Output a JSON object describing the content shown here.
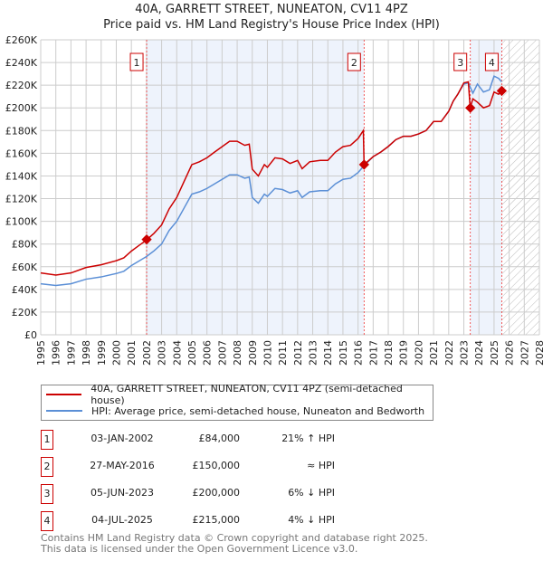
{
  "chart_data": {
    "type": "line",
    "title": "40A, GARRETT STREET, NUNEATON, CV11 4PZ",
    "subtitle": "Price paid vs. HM Land Registry's House Price Index (HPI)",
    "xlim": [
      1995,
      2028
    ],
    "ylim": [
      0,
      260000
    ],
    "x_ticks": [
      "1995",
      "1996",
      "1997",
      "1998",
      "1999",
      "2000",
      "2001",
      "2002",
      "2003",
      "2004",
      "2005",
      "2006",
      "2007",
      "2008",
      "2009",
      "2010",
      "2011",
      "2012",
      "2013",
      "2014",
      "2015",
      "2016",
      "2017",
      "2018",
      "2019",
      "2020",
      "2021",
      "2022",
      "2023",
      "2024",
      "2025",
      "2026",
      "2027",
      "2028"
    ],
    "y_ticks": [
      "£0",
      "£20K",
      "£40K",
      "£60K",
      "£80K",
      "£100K",
      "£120K",
      "£140K",
      "£160K",
      "£180K",
      "£200K",
      "£220K",
      "£240K",
      "£260K"
    ],
    "grid": true,
    "series": [
      {
        "name": "40A, GARRETT STREET, NUNEATON, CV11 4PZ (semi-detached house)",
        "color": "#cc0000",
        "x": [
          1995,
          1996,
          1997,
          1998,
          1999,
          2000,
          2000.5,
          2001,
          2001.5,
          2002,
          2002.5,
          2003,
          2003.5,
          2004,
          2004.5,
          2005,
          2005.5,
          2006,
          2006.5,
          2007,
          2007.5,
          2008,
          2008.5,
          2008.8,
          2009,
          2009.4,
          2009.8,
          2010,
          2010.5,
          2011,
          2011.5,
          2012,
          2012.3,
          2012.8,
          2013.5,
          2014,
          2014.5,
          2015,
          2015.5,
          2016,
          2016.35,
          2016.4,
          2017,
          2017.5,
          2018,
          2018.5,
          2019,
          2019.5,
          2020,
          2020.5,
          2021,
          2021.5,
          2022,
          2022.3,
          2022.6,
          2023,
          2023.3,
          2023.42,
          2023.6,
          2023.9,
          2024.3,
          2024.7,
          2025,
          2025.3,
          2025.5
        ],
        "y": [
          54500,
          52600,
          54500,
          59300,
          61700,
          65300,
          67800,
          73800,
          78700,
          83500,
          89500,
          96800,
          111000,
          121000,
          135500,
          150000,
          152500,
          156000,
          161000,
          165800,
          170600,
          170600,
          167000,
          168000,
          146000,
          140000,
          150000,
          147600,
          156000,
          155000,
          151000,
          153700,
          146400,
          152500,
          153700,
          153700,
          161000,
          165800,
          167000,
          173000,
          180000,
          150000,
          157000,
          161000,
          166000,
          172000,
          175000,
          175000,
          177000,
          180000,
          188000,
          188000,
          197000,
          206000,
          212000,
          222000,
          223000,
          200000,
          208000,
          205000,
          200000,
          202000,
          214000,
          212000,
          215000
        ]
      },
      {
        "name": "HPI: Average price, semi-detached house, Nuneaton and Bedworth",
        "color": "#5b8fd6",
        "x": [
          1995,
          1996,
          1997,
          1998,
          1999,
          2000,
          2000.5,
          2001,
          2001.5,
          2002,
          2002.5,
          2003,
          2003.5,
          2004,
          2004.5,
          2005,
          2005.5,
          2006,
          2006.5,
          2007,
          2007.5,
          2008,
          2008.5,
          2008.8,
          2009,
          2009.4,
          2009.8,
          2010,
          2010.5,
          2011,
          2011.5,
          2012,
          2012.3,
          2012.8,
          2013.5,
          2014,
          2014.5,
          2015,
          2015.5,
          2016,
          2016.4,
          2017,
          2017.5,
          2018,
          2018.5,
          2019,
          2019.5,
          2020,
          2020.5,
          2021,
          2021.5,
          2022,
          2022.3,
          2022.6,
          2023,
          2023.3,
          2023.6,
          2023.9,
          2024.3,
          2024.7,
          2025,
          2025.3,
          2025.5
        ],
        "y": [
          45000,
          43500,
          45000,
          49000,
          51000,
          54000,
          56000,
          61000,
          65000,
          69000,
          74000,
          80000,
          92000,
          100000,
          112000,
          124000,
          126000,
          129000,
          133000,
          137000,
          141000,
          141000,
          138000,
          139000,
          121000,
          116000,
          124000,
          122000,
          129000,
          128000,
          125000,
          127000,
          121000,
          126000,
          127000,
          127000,
          133000,
          137000,
          138000,
          143000,
          149000,
          157000,
          161000,
          166000,
          172000,
          175000,
          175000,
          177000,
          180000,
          188000,
          188000,
          197000,
          206000,
          212000,
          221000,
          222000,
          213000,
          221000,
          214000,
          216000,
          228000,
          226000,
          223000
        ]
      }
    ],
    "sales": [
      {
        "label": "1",
        "x": 2002.01,
        "y": 84000,
        "date": "03-JAN-2002",
        "price": "£84,000",
        "vs_hpi": "21% ↑ HPI"
      },
      {
        "label": "2",
        "x": 2016.4,
        "y": 150000,
        "date": "27-MAY-2016",
        "price": "£150,000",
        "vs_hpi": "≈ HPI"
      },
      {
        "label": "3",
        "x": 2023.43,
        "y": 200000,
        "date": "05-JUN-2023",
        "price": "£200,000",
        "vs_hpi": "6% ↓ HPI"
      },
      {
        "label": "4",
        "x": 2025.51,
        "y": 215000,
        "date": "04-JUL-2025",
        "price": "£215,000",
        "vs_hpi": "4% ↓ HPI"
      }
    ],
    "shaded_ranges": [
      [
        2002.01,
        2016.4
      ],
      [
        2023.43,
        2025.51
      ]
    ],
    "forecast_hatch_from": 2025.51
  },
  "footer": {
    "line1": "Contains HM Land Registry data © Crown copyright and database right 2025.",
    "line2": "This data is licensed under the Open Government Licence v3.0."
  }
}
